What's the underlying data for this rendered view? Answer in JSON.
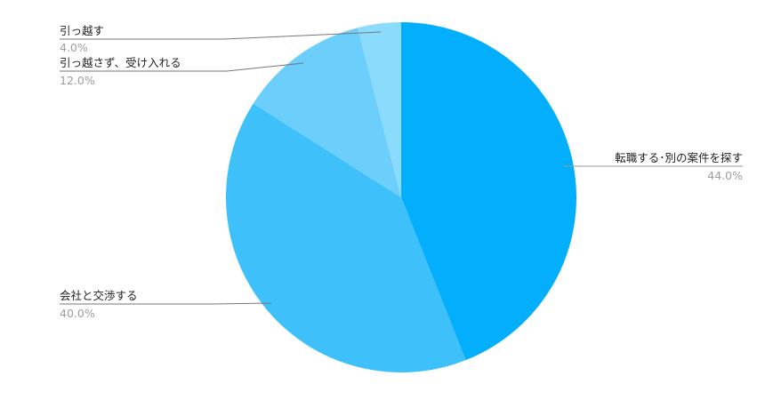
{
  "chart_data": {
    "type": "pie",
    "start_angle": "12 o'clock, clockwise",
    "legend": "none (leader-line labels)",
    "slices": [
      {
        "label": "転職する･別の案件を探す",
        "value": 44.0,
        "pct_label": "44.0%",
        "color": "#03aefc"
      },
      {
        "label": "会社と交渉する",
        "value": 40.0,
        "pct_label": "40.0%",
        "color": "#3ec1fb"
      },
      {
        "label": "引っ越さず、受け入れる",
        "value": 12.0,
        "pct_label": "12.0%",
        "color": "#6ccffb"
      },
      {
        "label": "引っ越す",
        "value": 4.0,
        "pct_label": "4.0%",
        "color": "#8bdbfc"
      }
    ]
  }
}
